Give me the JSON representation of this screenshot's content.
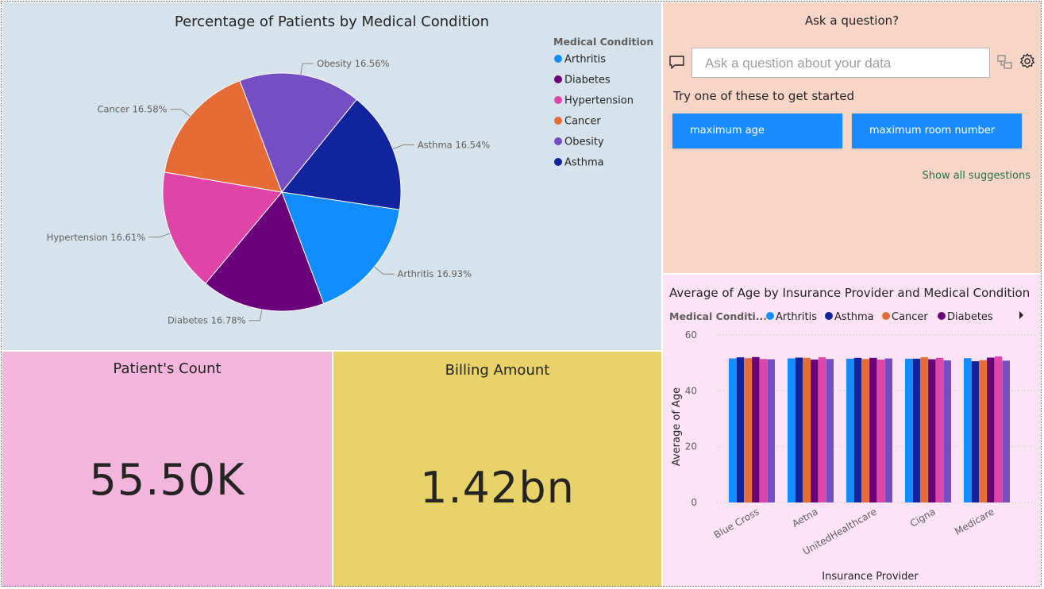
{
  "pie": {
    "title": "Percentage of Patients by Medical Condition",
    "legend_title": "Medical Condition",
    "chart_data": {
      "type": "pie",
      "title": "Percentage of Patients by Medical Condition",
      "legend_title": "Medical Condition",
      "legend_position": "right",
      "slices": [
        {
          "name": "Arthritis",
          "value": 16.93,
          "label": "Arthritis 16.93%",
          "color": "#118dff"
        },
        {
          "name": "Diabetes",
          "value": 16.78,
          "label": "Diabetes 16.78%",
          "color": "#6b007b"
        },
        {
          "name": "Hypertension",
          "value": 16.61,
          "label": "Hypertension 16.61%",
          "color": "#e044a7"
        },
        {
          "name": "Cancer",
          "value": 16.58,
          "label": "Cancer 16.58%",
          "color": "#e66c37"
        },
        {
          "name": "Obesity",
          "value": 16.56,
          "label": "Obesity 16.56%",
          "color": "#744ec2"
        },
        {
          "name": "Asthma",
          "value": 16.54,
          "label": "Asthma 16.54%",
          "color": "#12239e"
        }
      ]
    }
  },
  "qa": {
    "title": "Ask a question?",
    "placeholder": "Ask a question about your data",
    "hint": "Try one of these to get started",
    "suggestions": [
      "maximum age",
      "maximum room number"
    ],
    "show_all": "Show all suggestions",
    "icons": [
      "chat-icon",
      "swap-icon",
      "gear-icon"
    ]
  },
  "count": {
    "title": "Patient's Count",
    "value": "55.50K"
  },
  "billing": {
    "title": "Billing Amount",
    "value": "1.42bn"
  },
  "bar": {
    "title": "Average of Age by Insurance Provider and Medical Condition",
    "legend_title": "Medical Conditi...",
    "chart_data": {
      "type": "bar",
      "title": "Average of Age by Insurance Provider and Medical Condition",
      "xlabel": "Insurance Provider",
      "ylabel": "Average of Age",
      "ylim": [
        0,
        60
      ],
      "yticks": [
        "0",
        "20",
        "40",
        "60"
      ],
      "grid": true,
      "legend_position": "top",
      "categories": [
        "Blue Cross",
        "Aetna",
        "UnitedHealthcare",
        "Cigna",
        "Medicare"
      ],
      "series": [
        {
          "name": "Arthritis",
          "color": "#118dff",
          "values": [
            51.6,
            51.6,
            51.5,
            51.5,
            51.7
          ]
        },
        {
          "name": "Asthma",
          "color": "#12239e",
          "values": [
            52.0,
            51.9,
            51.8,
            51.5,
            50.6
          ]
        },
        {
          "name": "Cancer",
          "color": "#e66c37",
          "values": [
            51.7,
            51.8,
            51.4,
            52.0,
            51.0
          ]
        },
        {
          "name": "Diabetes",
          "color": "#6b007b",
          "values": [
            52.1,
            51.2,
            51.8,
            51.3,
            51.9
          ]
        },
        {
          "name": "",
          "color": "#e044a7",
          "values": [
            51.4,
            52.0,
            51.2,
            51.8,
            52.3
          ]
        },
        {
          "name": "",
          "color": "#744ec2",
          "values": [
            51.3,
            51.4,
            51.6,
            50.9,
            50.8
          ]
        }
      ]
    }
  }
}
